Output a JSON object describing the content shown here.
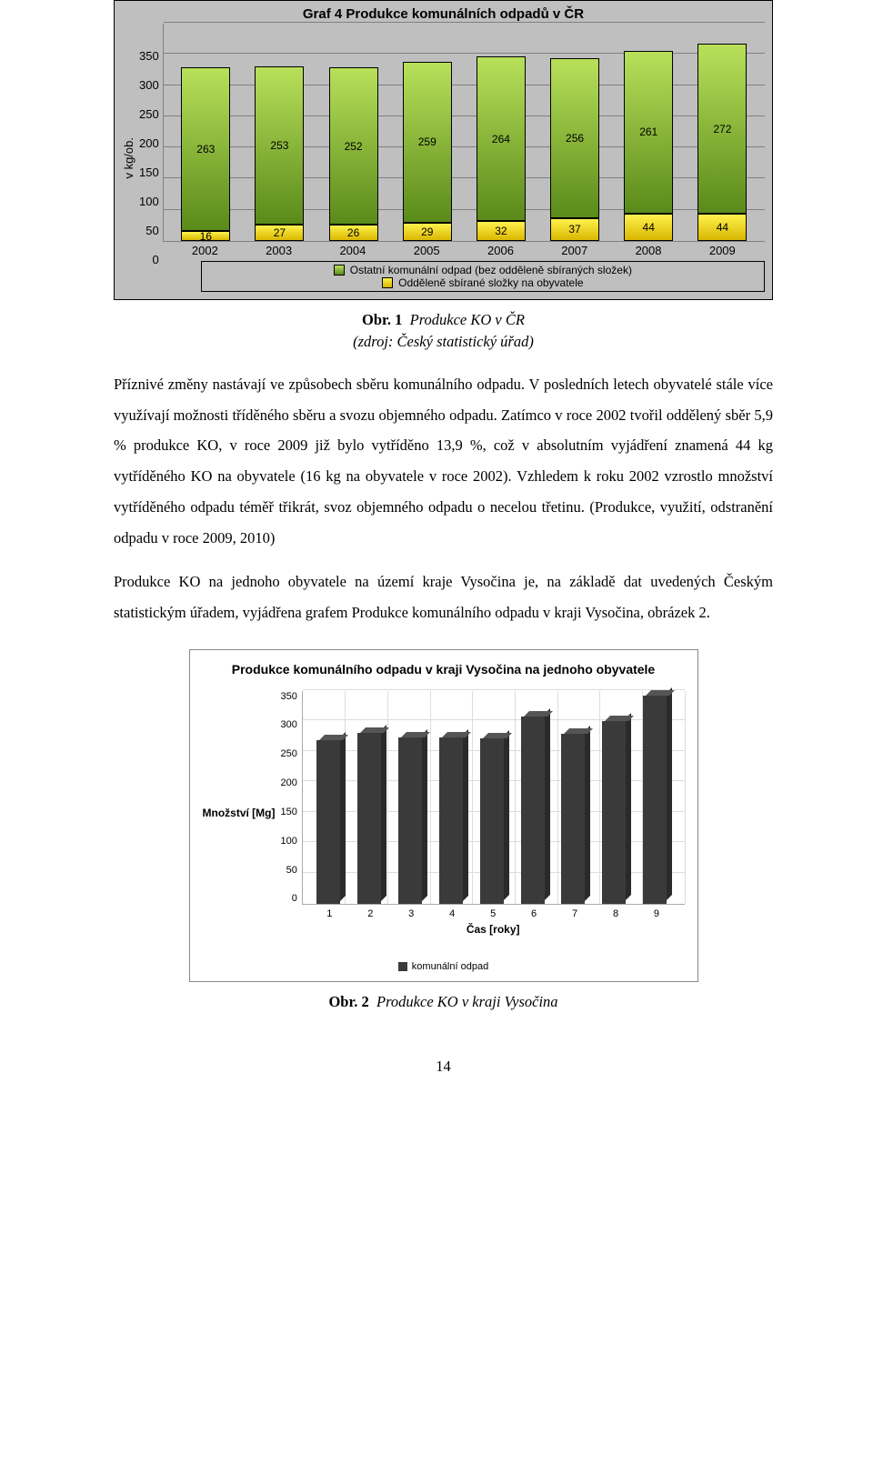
{
  "chart1": {
    "type": "stacked-bar",
    "title": "Graf 4 Produkce komunálních odpadů v ČR",
    "ylabel": "v kg/ob.",
    "ylim": [
      0,
      350
    ],
    "ytick_step": 50,
    "yticks": [
      "350",
      "300",
      "250",
      "200",
      "150",
      "100",
      "50",
      "0"
    ],
    "categories": [
      "2002",
      "2003",
      "2004",
      "2005",
      "2006",
      "2007",
      "2008",
      "2009"
    ],
    "series_green": {
      "label": "Ostatní komunální odpad (bez odděleně sbíraných složek)",
      "color_top": "#b8e05a",
      "color_bottom": "#5a8a1a",
      "values": [
        263,
        253,
        252,
        259,
        264,
        256,
        261,
        272
      ]
    },
    "series_yellow": {
      "label": "Odděleně sbírané složky na obyvatele",
      "color_top": "#fff24d",
      "color_bottom": "#d9b700",
      "values": [
        16,
        27,
        26,
        29,
        32,
        37,
        44,
        44
      ]
    },
    "plot_bg": "#bfbfbf",
    "grid_color": "#808080",
    "font_family": "Arial",
    "title_fontsize": 15,
    "tick_fontsize": 13,
    "datalabel_fontsize": 12
  },
  "caption1": {
    "label": "Obr. 1",
    "title": "Produkce KO v ČR",
    "source": "(zdroj: Český statistický úřad)"
  },
  "para1": "Příznivé změny nastávají ve způsobech sběru komunálního odpadu. V posledních letech obyvatelé stále více využívají možnosti tříděného sběru a svozu objemného odpadu. Zatímco v roce 2002 tvořil oddělený sběr 5,9 % produkce KO, v roce 2009 již bylo vytříděno 13,9 %, což v absolutním vyjádření znamená 44 kg vytříděného KO na obyvatele (16 kg na obyvatele v roce 2002). Vzhledem k roku 2002 vzrostlo množství vytříděného odpadu téměř třikrát, svoz objemného odpadu o necelou třetinu. (Produkce, využití, odstranění odpadu v roce 2009, 2010)",
  "para2": "Produkce KO na jednoho obyvatele na území kraje Vysočina je, na základě dat uvedených Českým statistickým úřadem, vyjádřena grafem Produkce komunálního odpadu v kraji Vysočina, obrázek 2.",
  "chart2": {
    "type": "bar-3d",
    "title": "Produkce komunálního odpadu v kraji Vysočina na jednoho obyvatele",
    "ylabel": "Množství [Mg]",
    "xlabel": "Čas [roky]",
    "ylim": [
      0,
      350
    ],
    "ytick_step": 50,
    "yticks": [
      "350",
      "300",
      "250",
      "200",
      "150",
      "100",
      "50",
      "0"
    ],
    "categories": [
      "1",
      "2",
      "3",
      "4",
      "5",
      "6",
      "7",
      "8",
      "9"
    ],
    "values": [
      268,
      280,
      272,
      272,
      270,
      306,
      278,
      298,
      340
    ],
    "bar_color": "#3a3a3a",
    "bar_side_color": "#2a2a2a",
    "bar_top_color": "#555555",
    "legend_label": "komunální odpad",
    "grid_color": "#dddddd",
    "border_color": "#aaaaaa",
    "title_fontsize": 14,
    "tick_fontsize": 11,
    "label_fontsize": 12
  },
  "caption2": {
    "label": "Obr. 2",
    "title": "Produkce KO v kraji Vysočina"
  },
  "page_number": "14"
}
